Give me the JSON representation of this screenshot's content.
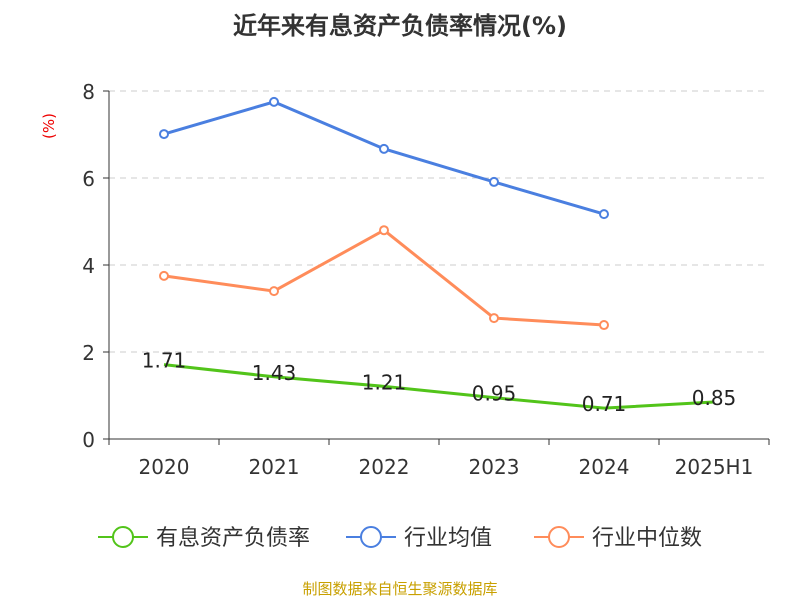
{
  "chart_data": {
    "type": "line",
    "title": "近年来有息资产负债率情况(%)",
    "ylabel": "(%)",
    "categories": [
      "2020",
      "2021",
      "2022",
      "2023",
      "2024",
      "2025H1"
    ],
    "ylim": [
      0,
      8
    ],
    "yticks": [
      0,
      2,
      4,
      6,
      8
    ],
    "grid": true,
    "legend_position": "bottom",
    "series": [
      {
        "name": "有息资产负债率",
        "color": "#52c41a",
        "values": [
          1.71,
          1.43,
          1.21,
          0.95,
          0.71,
          0.85
        ],
        "labels": [
          "1.71",
          "1.43",
          "1.21",
          "0.95",
          "0.71",
          "0.85"
        ]
      },
      {
        "name": "行业均值",
        "color": "#4a7fe0",
        "values": [
          7.01,
          7.75,
          6.67,
          5.91,
          5.17,
          null
        ]
      },
      {
        "name": "行业中位数",
        "color": "#ff8c5a",
        "values": [
          3.75,
          3.4,
          4.8,
          2.78,
          2.62,
          null
        ]
      }
    ]
  },
  "source": "制图数据来自恒生聚源数据库"
}
